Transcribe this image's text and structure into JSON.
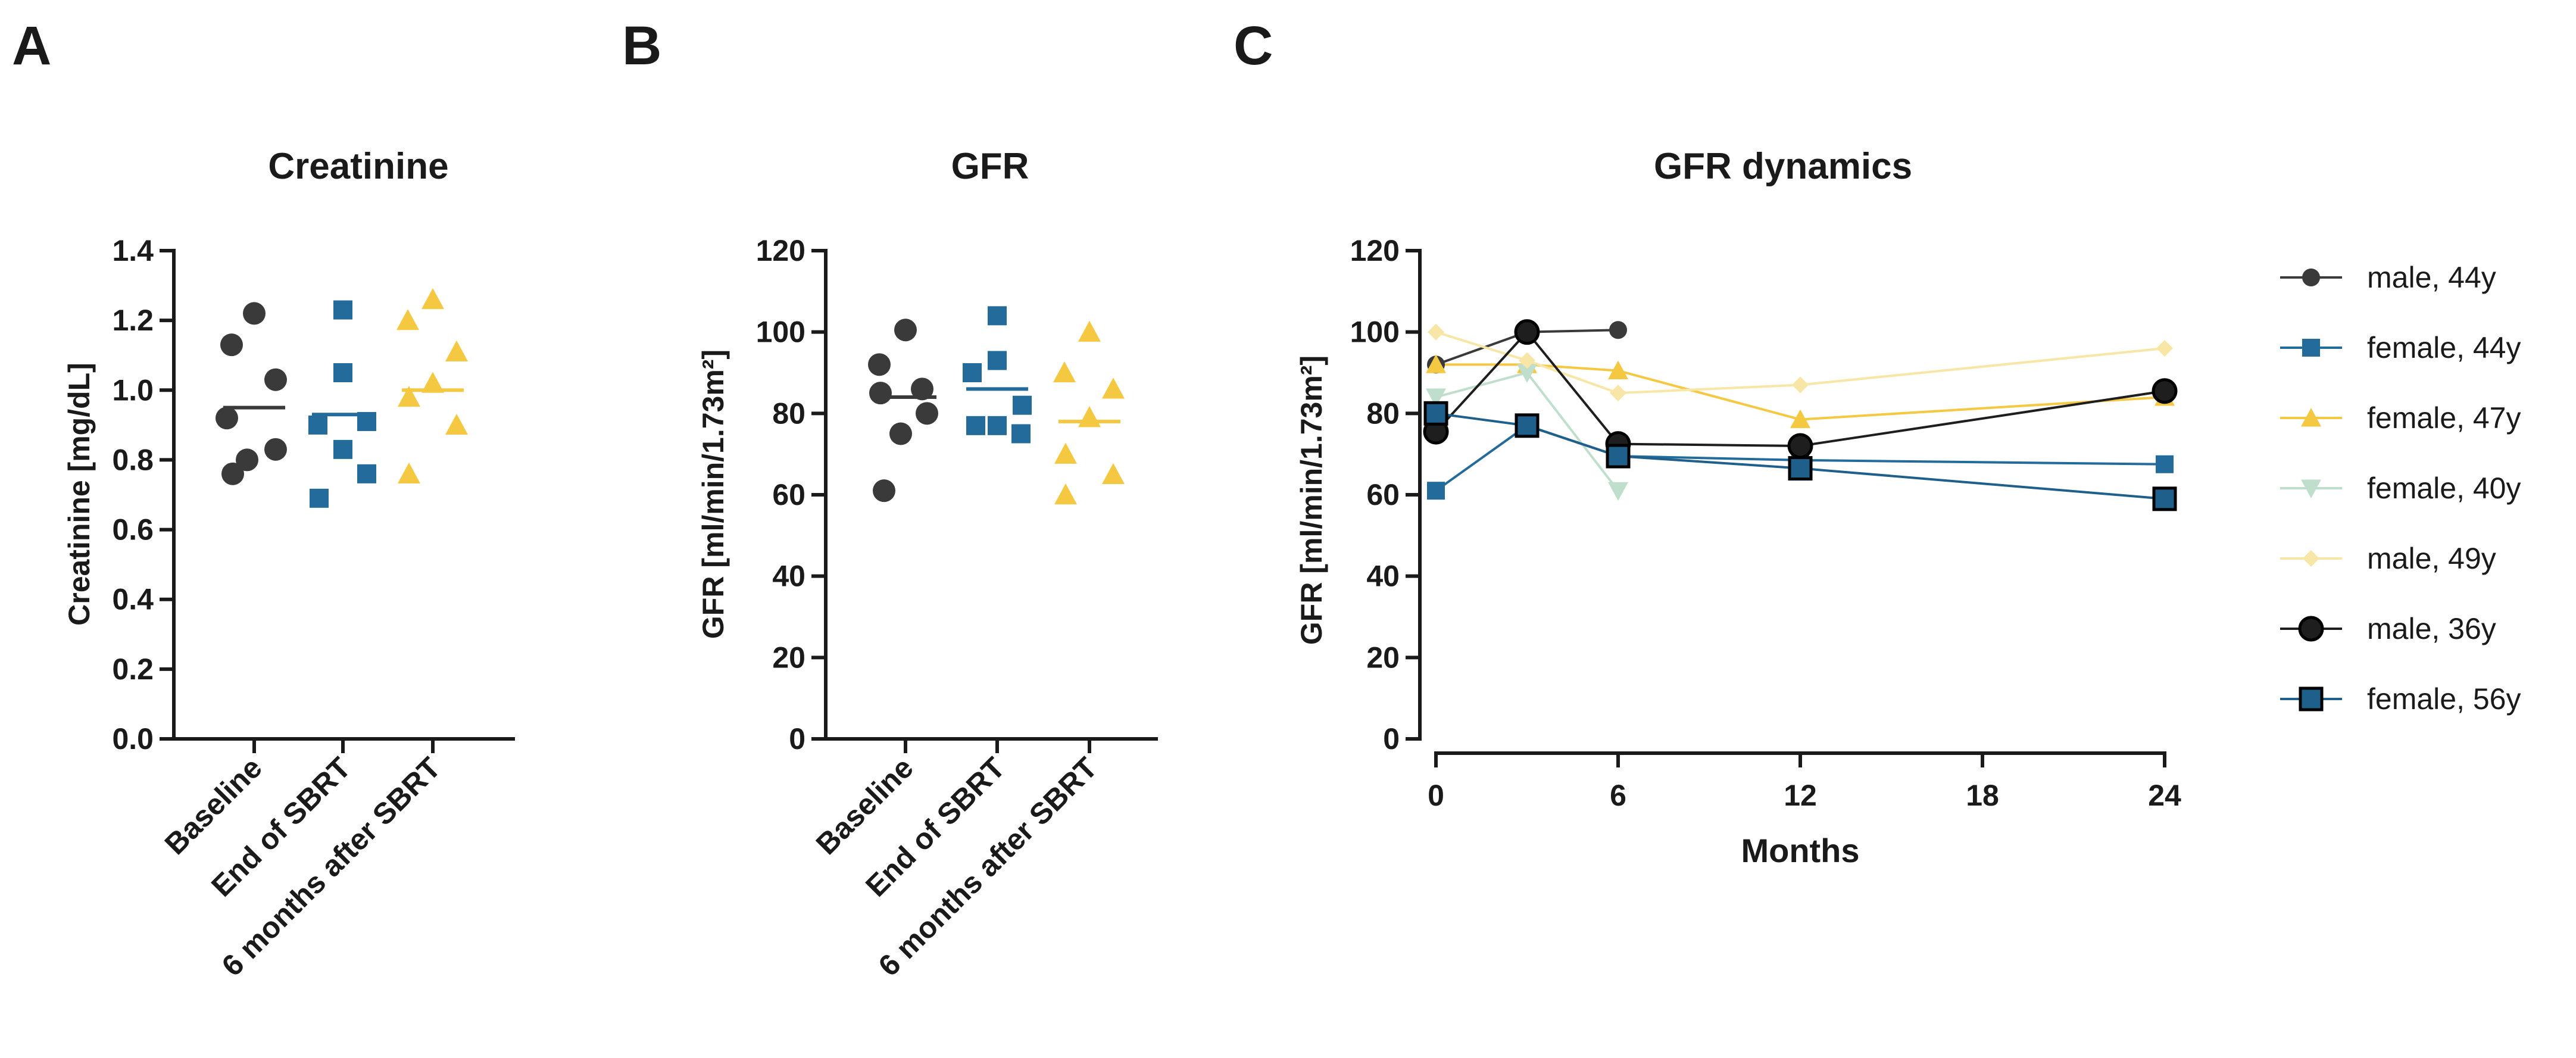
{
  "panels": {
    "A": "A",
    "B": "B",
    "C": "C"
  },
  "colors": {
    "dark": "#3a3a3a",
    "blue": "#236b9a",
    "yellow": "#f5c842",
    "mint": "#bfdfcc",
    "paleyellow": "#f7e6a6",
    "black": "#1e1e1e",
    "navy": "#1f5f8b"
  },
  "chart_data": [
    {
      "type": "scatter",
      "title": "Creatinine",
      "xlabel": "",
      "ylabel": "Creatinine [mg/dL]",
      "ylim": [
        0,
        1.4
      ],
      "yticks": [
        "0.0",
        "0.2",
        "0.4",
        "0.6",
        "0.8",
        "1.0",
        "1.2",
        "1.4"
      ],
      "categories": [
        "Baseline",
        "End of SBRT",
        "6 months after SBRT"
      ],
      "series": [
        {
          "name": "Baseline",
          "marker": "circle",
          "color": "#3a3a3a",
          "values": [
            1.22,
            1.13,
            1.03,
            0.92,
            0.83,
            0.8,
            0.76
          ],
          "mean": 0.95
        },
        {
          "name": "End of SBRT",
          "marker": "square",
          "color": "#236b9a",
          "values": [
            1.23,
            1.05,
            0.9,
            0.91,
            0.83,
            0.76,
            0.69
          ],
          "mean": 0.93
        },
        {
          "name": "6 months after SBRT",
          "marker": "triangle",
          "color": "#f5c842",
          "values": [
            1.26,
            1.2,
            1.11,
            1.02,
            0.98,
            0.9,
            0.76
          ],
          "mean": 1.0
        }
      ]
    },
    {
      "type": "scatter",
      "title": "GFR",
      "xlabel": "",
      "ylabel": "GFR [ml/min/1.73m²]",
      "ylim": [
        0,
        120
      ],
      "yticks": [
        "0",
        "20",
        "40",
        "60",
        "80",
        "100",
        "120"
      ],
      "categories": [
        "Baseline",
        "End of SBRT",
        "6 months after SBRT"
      ],
      "series": [
        {
          "name": "Baseline",
          "marker": "circle",
          "color": "#3a3a3a",
          "values": [
            100.5,
            92,
            86,
            85,
            80,
            75,
            61
          ],
          "mean": 84
        },
        {
          "name": "End of SBRT",
          "marker": "square",
          "color": "#236b9a",
          "values": [
            104,
            93,
            90,
            82,
            77,
            77,
            75
          ],
          "mean": 86
        },
        {
          "name": "6 months after SBRT",
          "marker": "triangle",
          "color": "#f5c842",
          "values": [
            100,
            90,
            86,
            79,
            70,
            65,
            60
          ],
          "mean": 78
        }
      ]
    },
    {
      "type": "line",
      "title": "GFR dynamics",
      "xlabel": "Months",
      "ylabel": "GFR [ml/min/1.73m²]",
      "xlim": [
        0,
        24
      ],
      "ylim": [
        0,
        120
      ],
      "xticks": [
        "0",
        "6",
        "12",
        "18",
        "24"
      ],
      "yticks": [
        "0",
        "20",
        "40",
        "60",
        "80",
        "100",
        "120"
      ],
      "legend_position": "right",
      "series": [
        {
          "name": "male, 44y",
          "marker": "circle-small",
          "color": "#3a3a3a",
          "x": [
            0,
            3,
            6
          ],
          "y": [
            92,
            100,
            100.5
          ]
        },
        {
          "name": "female, 44y",
          "marker": "square-small",
          "color": "#236b9a",
          "x": [
            0,
            3,
            6,
            12,
            24
          ],
          "y": [
            61,
            77,
            69.5,
            68.5,
            67.5
          ]
        },
        {
          "name": "female, 47y",
          "marker": "triangle-up",
          "color": "#f5c842",
          "x": [
            0,
            3,
            6,
            12,
            24
          ],
          "y": [
            92,
            92,
            90.5,
            78.5,
            84
          ]
        },
        {
          "name": "female, 40y",
          "marker": "triangle-down",
          "color": "#bfdfcc",
          "x": [
            0,
            3,
            6
          ],
          "y": [
            84,
            90,
            61
          ]
        },
        {
          "name": "male, 49y",
          "marker": "diamond",
          "color": "#f7e6a6",
          "x": [
            0,
            3,
            6,
            12,
            24
          ],
          "y": [
            100,
            93,
            85,
            87,
            96
          ]
        },
        {
          "name": "male, 36y",
          "marker": "circle-large",
          "color": "#1e1e1e",
          "x": [
            0,
            3,
            6,
            12,
            24
          ],
          "y": [
            75.5,
            100,
            72.5,
            72,
            85.5
          ]
        },
        {
          "name": "female, 56y",
          "marker": "square-large",
          "color": "#1f5f8b",
          "x": [
            0,
            3,
            6,
            12,
            24
          ],
          "y": [
            80,
            77,
            69.5,
            66.5,
            59
          ]
        }
      ]
    }
  ]
}
